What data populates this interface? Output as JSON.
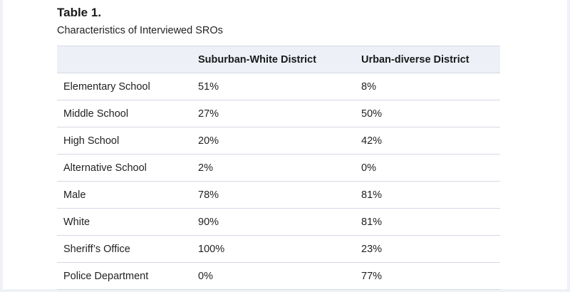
{
  "caption": {
    "label": "Table 1.",
    "title": "Characteristics of Interviewed SROs"
  },
  "table": {
    "headers": [
      "",
      "Suburban-White District",
      "Urban-diverse District"
    ],
    "rows": [
      [
        "Elementary School",
        "51%",
        "8%"
      ],
      [
        "Middle School",
        "27%",
        "50%"
      ],
      [
        "High School",
        "20%",
        "42%"
      ],
      [
        "Alternative School",
        "2%",
        "0%"
      ],
      [
        "Male",
        "78%",
        "81%"
      ],
      [
        "White",
        "90%",
        "81%"
      ],
      [
        "Sheriff’s Office",
        "100%",
        "23%"
      ],
      [
        "Police Department",
        "0%",
        "77%"
      ]
    ]
  }
}
